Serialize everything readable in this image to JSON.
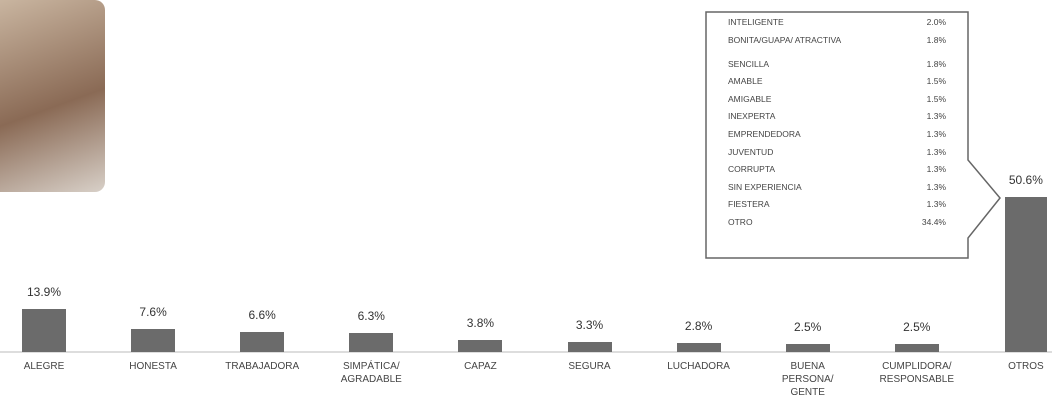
{
  "chart_data": {
    "type": "bar",
    "categories": [
      "ALEGRE",
      "HONESTA",
      "TRABAJADORA",
      "SIMPÁTICA/ AGRADABLE",
      "CAPAZ",
      "SEGURA",
      "LUCHADORA",
      "BUENA PERSONA/ GENTE",
      "CUMPLIDORA/ RESPONSABLE",
      "OTROS"
    ],
    "values": [
      13.9,
      7.6,
      6.6,
      6.3,
      3.8,
      3.3,
      2.8,
      2.5,
      2.5,
      50.6
    ],
    "value_labels": [
      "13.9%",
      "7.6%",
      "6.6%",
      "6.3%",
      "3.8%",
      "3.3%",
      "2.8%",
      "2.5%",
      "2.5%",
      "50.6%"
    ],
    "color": "#6b6b6b"
  },
  "breakdown": {
    "rows": [
      [
        "INTELIGENTE",
        "2.0%"
      ],
      [
        "BONITA/GUAPA/ ATRACTIVA",
        "1.8%"
      ],
      [
        "SENCILLA",
        "1.8%"
      ],
      [
        "AMABLE",
        "1.5%"
      ],
      [
        "AMIGABLE",
        "1.5%"
      ],
      [
        "INEXPERTA",
        "1.3%"
      ],
      [
        "EMPRENDEDORA",
        "1.3%"
      ],
      [
        "JUVENTUD",
        "1.3%"
      ],
      [
        "CORRUPTA",
        "1.3%"
      ],
      [
        "SIN EXPERIENCIA",
        "1.3%"
      ],
      [
        "FIESTERA",
        "1.3%"
      ],
      [
        "OTRO",
        "34.4%"
      ]
    ]
  }
}
